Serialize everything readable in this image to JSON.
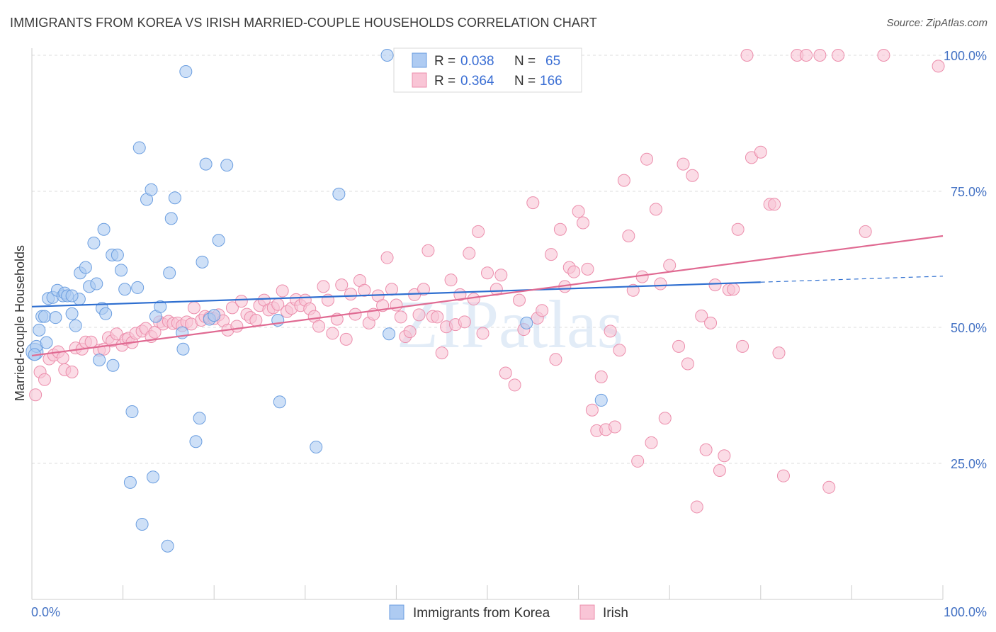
{
  "chart_data": {
    "type": "scatter",
    "title": "IMMIGRANTS FROM KOREA VS IRISH MARRIED-COUPLE HOUSEHOLDS CORRELATION CHART",
    "source": "Source: ZipAtlas.com",
    "xlabel": "",
    "ylabel": "Married-couple Households",
    "xlim": [
      0,
      100
    ],
    "ylim": [
      0,
      103
    ],
    "x_tick_labels": [
      "0.0%",
      "100.0%"
    ],
    "y_ticks": [
      25,
      50,
      75,
      100
    ],
    "y_tick_labels": [
      "25.0%",
      "50.0%",
      "75.0%",
      "100.0%"
    ],
    "grid": true,
    "legend_position": "top-center",
    "colors": {
      "korea_fill": "#aecbf2",
      "korea_stroke": "#6b9ee0",
      "korea_line": "#2f6fd0",
      "irish_fill": "#f9c5d6",
      "irish_stroke": "#ec8eac",
      "irish_line": "#e06a92",
      "tick_label": "#4472c4",
      "grid": "#dddddd"
    },
    "stats": [
      {
        "r_label": "R =",
        "r_value": "0.038",
        "n_label": "N =",
        "n_value": "65"
      },
      {
        "r_label": "R =",
        "r_value": "0.364",
        "n_label": "N =",
        "n_value": "166"
      }
    ],
    "watermark": "ZIPatlas",
    "series": [
      {
        "name": "Immigrants from Korea",
        "trend": {
          "x": [
            0,
            80
          ],
          "y": [
            53.8,
            58.3
          ],
          "dashed_to": [
            100,
            59.4
          ]
        },
        "points": [
          [
            0.3,
            45.5
          ],
          [
            0.5,
            46.5
          ],
          [
            0.8,
            49.5
          ],
          [
            1.1,
            52
          ],
          [
            1.4,
            52
          ],
          [
            1.6,
            47.2
          ],
          [
            1.8,
            55.3
          ],
          [
            2.3,
            55.5
          ],
          [
            2.6,
            51.8
          ],
          [
            2.8,
            56.8
          ],
          [
            3.4,
            55.8
          ],
          [
            3.6,
            56.3
          ],
          [
            3.9,
            55.8
          ],
          [
            4.4,
            52.5
          ],
          [
            4.8,
            50.3
          ],
          [
            5.2,
            55.2
          ],
          [
            5.3,
            60
          ],
          [
            5.9,
            61
          ],
          [
            6.3,
            57.5
          ],
          [
            6.8,
            65.5
          ],
          [
            7.1,
            58
          ],
          [
            7.4,
            44
          ],
          [
            7.7,
            53.5
          ],
          [
            7.9,
            68
          ],
          [
            8.1,
            52.5
          ],
          [
            8.8,
            63.3
          ],
          [
            8.9,
            43
          ],
          [
            9.4,
            63.3
          ],
          [
            9.8,
            60.5
          ],
          [
            10.2,
            57
          ],
          [
            10.8,
            21.5
          ],
          [
            11.0,
            34.5
          ],
          [
            11.6,
            57.3
          ],
          [
            11.8,
            83
          ],
          [
            12.1,
            13.8
          ],
          [
            12.6,
            73.5
          ],
          [
            13.1,
            75.3
          ],
          [
            13.3,
            22.5
          ],
          [
            13.6,
            52
          ],
          [
            14.1,
            53.8
          ],
          [
            14.9,
            9.8
          ],
          [
            15.1,
            60
          ],
          [
            15.3,
            70
          ],
          [
            15.7,
            73.8
          ],
          [
            16.5,
            49
          ],
          [
            16.6,
            46
          ],
          [
            16.9,
            97
          ],
          [
            18.0,
            29
          ],
          [
            18.4,
            33.3
          ],
          [
            18.7,
            62
          ],
          [
            19.1,
            80
          ],
          [
            19.5,
            51.5
          ],
          [
            20.0,
            52.2
          ],
          [
            20.5,
            66
          ],
          [
            21.4,
            79.8
          ],
          [
            27.0,
            51.3
          ],
          [
            27.2,
            36.3
          ],
          [
            31.2,
            28
          ],
          [
            33.7,
            74.5
          ],
          [
            39.0,
            100
          ],
          [
            39.2,
            48.8
          ],
          [
            54.3,
            50.8
          ],
          [
            62.5,
            36.6
          ],
          [
            0.3,
            45.0
          ],
          [
            4.4,
            55.8
          ]
        ]
      },
      {
        "name": "Irish",
        "trend": {
          "x": [
            0,
            100
          ],
          "y": [
            44.8,
            66.8
          ]
        },
        "points": [
          [
            0.4,
            37.6
          ],
          [
            0.9,
            41.8
          ],
          [
            1.4,
            40.4
          ],
          [
            1.9,
            44.2
          ],
          [
            2.4,
            44.9
          ],
          [
            2.9,
            45.5
          ],
          [
            3.4,
            44.4
          ],
          [
            3.6,
            42.2
          ],
          [
            4.4,
            41.8
          ],
          [
            4.8,
            46.2
          ],
          [
            5.5,
            46.0
          ],
          [
            5.9,
            47.3
          ],
          [
            6.5,
            47.3
          ],
          [
            7.4,
            45.8
          ],
          [
            7.9,
            46.0
          ],
          [
            8.4,
            48.1
          ],
          [
            8.8,
            47.5
          ],
          [
            9.3,
            48.8
          ],
          [
            9.9,
            46.7
          ],
          [
            10.3,
            47.8
          ],
          [
            10.6,
            48.0
          ],
          [
            11.0,
            47.2
          ],
          [
            11.4,
            48.9
          ],
          [
            12.1,
            49.3
          ],
          [
            12.5,
            49.8
          ],
          [
            13.1,
            48.3
          ],
          [
            13.5,
            49.1
          ],
          [
            14.0,
            51.0
          ],
          [
            14.4,
            50.6
          ],
          [
            15.0,
            51.1
          ],
          [
            15.5,
            50.7
          ],
          [
            16.0,
            50.8
          ],
          [
            16.5,
            50.3
          ],
          [
            17.0,
            51.0
          ],
          [
            17.5,
            50.6
          ],
          [
            17.8,
            53.6
          ],
          [
            18.6,
            51.3
          ],
          [
            19.0,
            52.0
          ],
          [
            19.5,
            51.8
          ],
          [
            20.0,
            51.6
          ],
          [
            20.5,
            52.3
          ],
          [
            21.0,
            51.2
          ],
          [
            21.5,
            49.5
          ],
          [
            22.0,
            53.6
          ],
          [
            22.5,
            50.2
          ],
          [
            23.0,
            54.8
          ],
          [
            23.6,
            52.4
          ],
          [
            24.0,
            51.8
          ],
          [
            24.6,
            51.3
          ],
          [
            25.0,
            54.0
          ],
          [
            25.5,
            55.0
          ],
          [
            26.0,
            53.2
          ],
          [
            26.5,
            53.6
          ],
          [
            27.0,
            54.2
          ],
          [
            27.5,
            56.7
          ],
          [
            28.0,
            52.9
          ],
          [
            28.5,
            53.5
          ],
          [
            29.0,
            55.1
          ],
          [
            29.5,
            54.0
          ],
          [
            30.0,
            55.0
          ],
          [
            30.5,
            53.4
          ],
          [
            31.0,
            52.0
          ],
          [
            31.5,
            50.2
          ],
          [
            32.0,
            57.5
          ],
          [
            32.5,
            55.0
          ],
          [
            33.0,
            48.9
          ],
          [
            33.5,
            51.5
          ],
          [
            34.0,
            57.8
          ],
          [
            34.5,
            47.8
          ],
          [
            35.0,
            56.1
          ],
          [
            35.5,
            52.4
          ],
          [
            36.0,
            58.6
          ],
          [
            36.5,
            56.8
          ],
          [
            37.0,
            50.8
          ],
          [
            37.5,
            52.4
          ],
          [
            38.0,
            55.8
          ],
          [
            38.5,
            54.0
          ],
          [
            39.0,
            62.8
          ],
          [
            39.5,
            57.0
          ],
          [
            40.0,
            54.1
          ],
          [
            40.5,
            51.9
          ],
          [
            41.0,
            48.3
          ],
          [
            41.5,
            49.2
          ],
          [
            42.0,
            56.0
          ],
          [
            42.5,
            52.3
          ],
          [
            43.0,
            57.0
          ],
          [
            43.5,
            64.1
          ],
          [
            44.0,
            52.0
          ],
          [
            44.5,
            51.9
          ],
          [
            45.0,
            45.3
          ],
          [
            45.5,
            50.1
          ],
          [
            46.0,
            58.7
          ],
          [
            46.5,
            50.5
          ],
          [
            47.0,
            56.0
          ],
          [
            47.5,
            51.0
          ],
          [
            48.0,
            63.6
          ],
          [
            48.5,
            55.2
          ],
          [
            49.0,
            67.6
          ],
          [
            49.5,
            48.9
          ],
          [
            50.0,
            60.0
          ],
          [
            51.0,
            57.0
          ],
          [
            51.5,
            59.6
          ],
          [
            52.0,
            41.6
          ],
          [
            53.0,
            39.4
          ],
          [
            53.5,
            55.0
          ],
          [
            54.0,
            49.6
          ],
          [
            55.0,
            72.9
          ],
          [
            55.5,
            51.7
          ],
          [
            56.0,
            53.1
          ],
          [
            57.0,
            63.4
          ],
          [
            57.5,
            44.1
          ],
          [
            58.0,
            68.0
          ],
          [
            58.5,
            57.5
          ],
          [
            59.0,
            61.0
          ],
          [
            59.5,
            60.2
          ],
          [
            60.0,
            71.3
          ],
          [
            60.5,
            69.2
          ],
          [
            61.0,
            60.7
          ],
          [
            61.5,
            34.8
          ],
          [
            62.0,
            31.0
          ],
          [
            62.5,
            40.9
          ],
          [
            63.0,
            31.2
          ],
          [
            63.5,
            49.3
          ],
          [
            64.0,
            31.7
          ],
          [
            64.5,
            45.8
          ],
          [
            65.0,
            77.0
          ],
          [
            65.5,
            66.8
          ],
          [
            66.0,
            56.8
          ],
          [
            66.5,
            25.4
          ],
          [
            67.0,
            59.3
          ],
          [
            67.5,
            80.9
          ],
          [
            68.0,
            28.8
          ],
          [
            68.5,
            71.7
          ],
          [
            69.0,
            58.0
          ],
          [
            69.5,
            33.3
          ],
          [
            70.0,
            61.4
          ],
          [
            71.0,
            46.5
          ],
          [
            71.5,
            80.0
          ],
          [
            72.0,
            43.3
          ],
          [
            72.5,
            77.9
          ],
          [
            73.0,
            17.0
          ],
          [
            73.5,
            52.1
          ],
          [
            74.0,
            27.5
          ],
          [
            74.5,
            50.8
          ],
          [
            75.0,
            57.8
          ],
          [
            75.5,
            23.7
          ],
          [
            76.0,
            26.4
          ],
          [
            76.5,
            56.9
          ],
          [
            77.0,
            57.0
          ],
          [
            77.5,
            68.0
          ],
          [
            78.0,
            46.5
          ],
          [
            78.5,
            100
          ],
          [
            79.0,
            81.2
          ],
          [
            80.0,
            82.2
          ],
          [
            81.0,
            72.6
          ],
          [
            81.5,
            72.6
          ],
          [
            82.0,
            45.3
          ],
          [
            82.5,
            22.7
          ],
          [
            84.0,
            100
          ],
          [
            85.0,
            100
          ],
          [
            86.5,
            100
          ],
          [
            87.5,
            20.6
          ],
          [
            88.5,
            100
          ],
          [
            91.5,
            67.6
          ],
          [
            93.5,
            100
          ],
          [
            99.5,
            98
          ]
        ]
      }
    ]
  },
  "header": {
    "title": "IMMIGRANTS FROM KOREA VS IRISH MARRIED-COUPLE HOUSEHOLDS CORRELATION CHART",
    "source": "Source: ZipAtlas.com"
  },
  "legend_bottom": [
    {
      "label": "Immigrants from Korea"
    },
    {
      "label": "Irish"
    }
  ]
}
